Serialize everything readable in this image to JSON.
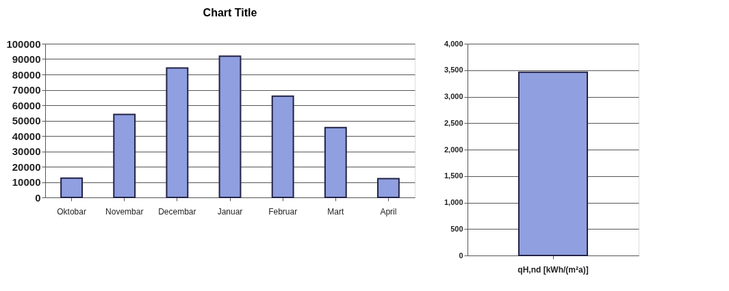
{
  "chart_data": [
    {
      "type": "bar",
      "title": "Chart Title",
      "categories": [
        "Oktobar",
        "Novembar",
        "Decembar",
        "Januar",
        "Februar",
        "Mart",
        "April"
      ],
      "values": [
        12600,
        54000,
        84200,
        91900,
        65900,
        45400,
        12200
      ],
      "color": "#8f9fe0",
      "ylim": [
        0,
        100000
      ],
      "yticks": [
        0,
        10000,
        20000,
        30000,
        40000,
        50000,
        60000,
        70000,
        80000,
        90000,
        100000
      ],
      "grid": "y"
    },
    {
      "type": "bar",
      "categories": [
        "qH,nd [kWh/(m²a)]"
      ],
      "values": [
        3460
      ],
      "color": "#8f9fe0",
      "ylim": [
        0,
        4000
      ],
      "yticks": [
        0,
        {
          "value": 500,
          "label": "500"
        },
        {
          "value": 1000,
          "label": "1,000"
        },
        {
          "value": 1500,
          "label": "1,500"
        },
        {
          "value": 2000,
          "label": "2,000"
        },
        {
          "value": 2500,
          "label": "2,500"
        },
        {
          "value": 3000,
          "label": "3,000"
        },
        {
          "value": 3500,
          "label": "3,500"
        },
        {
          "value": 4000,
          "label": "4,000"
        }
      ],
      "grid": "y"
    }
  ]
}
